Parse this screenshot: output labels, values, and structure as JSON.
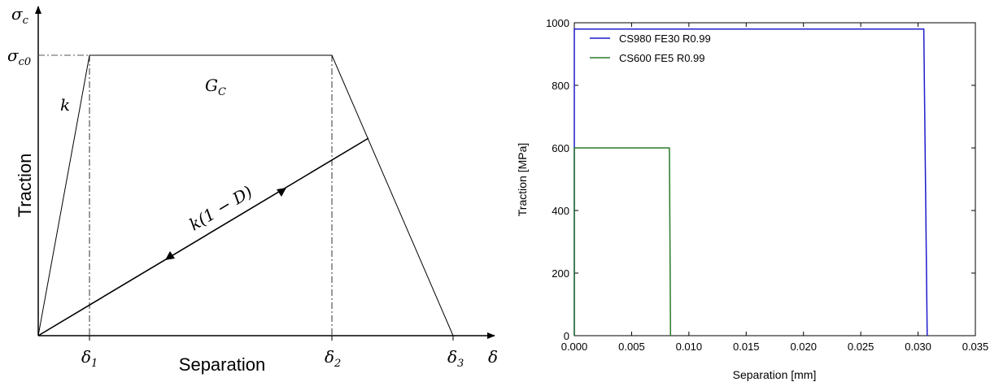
{
  "chart_data": [
    {
      "type": "line",
      "title": "",
      "xlabel": "Separation",
      "ylabel": "Traction",
      "x_axis_symbol": "δ",
      "y_axis_symbol": "σ",
      "y_axis_symbol_sub": "c",
      "y_peak_label": "σ",
      "y_peak_label_sub": "c0",
      "x_tick_labels": [
        {
          "main": "δ",
          "sub": "1"
        },
        {
          "main": "δ",
          "sub": "2"
        },
        {
          "main": "δ",
          "sub": "3"
        }
      ],
      "annotations": {
        "stiffness": "k",
        "energy": "G",
        "energy_sub": "C",
        "unloading": "k(1 − D)"
      },
      "x": [
        "0",
        "δ1",
        "δ2",
        "δ3"
      ],
      "series": [
        {
          "values": [
            0,
            1,
            1,
            0
          ]
        }
      ]
    },
    {
      "type": "line",
      "title": "",
      "xlabel": "Separation [mm]",
      "ylabel": "Traction [MPa]",
      "xlim": [
        0,
        0.035
      ],
      "ylim": [
        0,
        1000
      ],
      "x_ticks": [
        0,
        0.005,
        0.01,
        0.015,
        0.02,
        0.025,
        0.03,
        0.035
      ],
      "x_tick_labels": [
        "0.000",
        "0.005",
        "0.010",
        "0.015",
        "0.020",
        "0.025",
        "0.030",
        "0.035"
      ],
      "y_ticks": [
        0,
        200,
        400,
        600,
        800,
        1000
      ],
      "y_tick_labels": [
        "0",
        "200",
        "400",
        "600",
        "800",
        "1000"
      ],
      "grid": false,
      "legend_position": "top-left",
      "series": [
        {
          "name": "CS980 FE30 R0.99",
          "color": "#1c1ccc",
          "x": [
            0,
            0,
            0.0305,
            0.0308
          ],
          "y": [
            0,
            980,
            980,
            0
          ]
        },
        {
          "name": "CS600 FE5 R0.99",
          "color": "#2a7a2a",
          "x": [
            0,
            0,
            0.0083,
            0.0084
          ],
          "y": [
            0,
            600,
            600,
            0
          ]
        }
      ]
    }
  ]
}
